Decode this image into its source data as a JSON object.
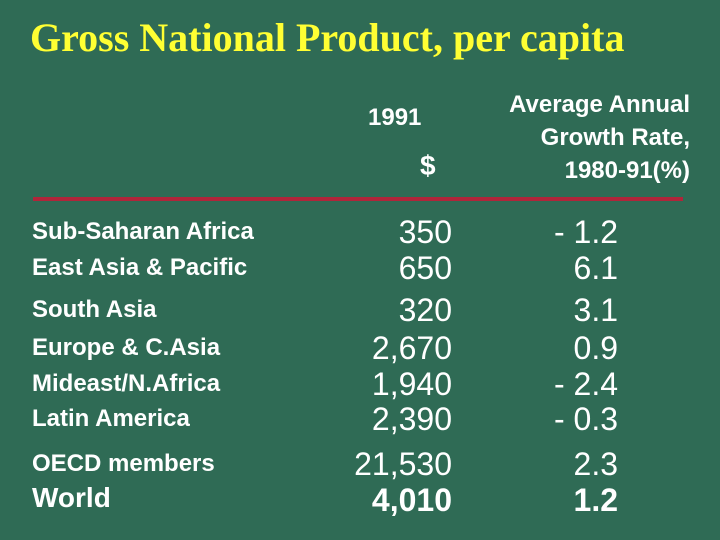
{
  "title": "Gross National Product, per capita",
  "columns": {
    "gnp_year": "1991",
    "gnp_unit": "$",
    "growth_header": [
      "Average Annual",
      "Growth Rate,",
      "1980-91(%)"
    ]
  },
  "rows": [
    {
      "region": "Sub-Saharan Africa",
      "gnp": "350",
      "growth": "- 1.2"
    },
    {
      "region": "East Asia & Pacific",
      "gnp": "650",
      "growth": "6.1"
    },
    {
      "region": "South Asia",
      "gnp": "320",
      "growth": "3.1"
    },
    {
      "region": "Europe & C.Asia",
      "gnp": "2,670",
      "growth": "0.9"
    },
    {
      "region": "Mideast/N.Africa",
      "gnp": "1,940",
      "growth": "- 2.4"
    },
    {
      "region": "Latin America",
      "gnp": "2,390",
      "growth": "- 0.3"
    },
    {
      "region": "OECD members",
      "gnp": "21,530",
      "growth": "2.3"
    },
    {
      "region": "World",
      "gnp": "4,010",
      "growth": "1.2"
    }
  ],
  "colors": {
    "background": "#2f6b55",
    "title": "#ffff33",
    "rule": "#b0253a",
    "text": "#ffffff"
  }
}
